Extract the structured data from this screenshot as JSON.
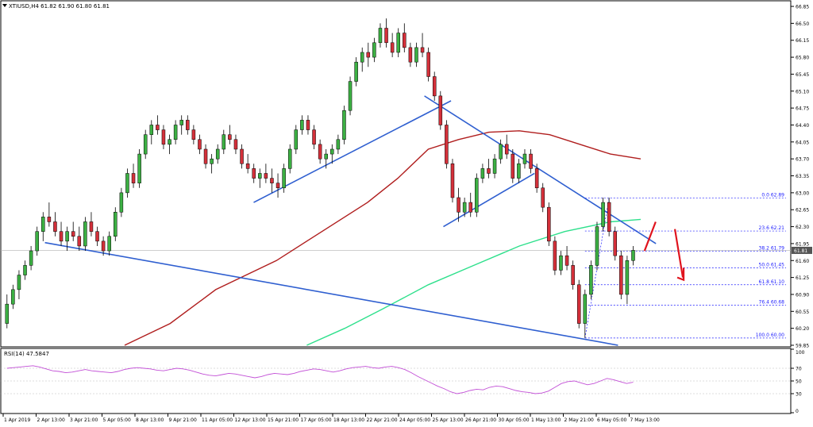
{
  "header": {
    "symbol_line": "XTIUSD,H4  61.82 61.90 61.80 61.81",
    "rsi_label": "RSI(14) 47.5847"
  },
  "colors": {
    "candle_up": "#3cb043",
    "candle_down": "#d4303a",
    "trendline": "#2f5fd0",
    "ma_slow": "#b01e1e",
    "ma_fast": "#2ee08c",
    "fib": "#1a1aff",
    "rsi": "#c24fd6",
    "arrow": "#e0141e"
  },
  "chart_data": {
    "type": "candlestick",
    "ylim": [
      59.85,
      66.9
    ],
    "price_ticks": [
      "66.85",
      "66.50",
      "66.15",
      "65.80",
      "65.45",
      "65.10",
      "64.75",
      "64.40",
      "64.05",
      "63.70",
      "63.35",
      "63.00",
      "62.65",
      "62.30",
      "61.95",
      "61.60",
      "61.25",
      "60.90",
      "60.55",
      "60.20",
      "59.85"
    ],
    "current_price": "61.81",
    "x_labels": [
      "1 Apr 2019",
      "2 Apr 13:00",
      "3 Apr 21:00",
      "5 Apr 05:00",
      "8 Apr 13:00",
      "9 Apr 21:00",
      "11 Apr 05:00",
      "12 Apr 13:00",
      "15 Apr 21:00",
      "17 Apr 05:00",
      "18 Apr 13:00",
      "22 Apr 21:00",
      "24 Apr 05:00",
      "25 Apr 13:00",
      "26 Apr 21:00",
      "30 Apr 05:00",
      "1 May 13:00",
      "2 May 21:00",
      "6 May 05:00",
      "7 May 13:00"
    ],
    "fib_levels": [
      {
        "label": "0.0 62.89",
        "price": 62.89
      },
      {
        "label": "23.6 62.21",
        "price": 62.21
      },
      {
        "label": "38.2 61.79",
        "price": 61.79
      },
      {
        "label": "50.0 61.45",
        "price": 61.45
      },
      {
        "label": "61.8 61.10",
        "price": 61.1
      },
      {
        "label": "76.4 60.68",
        "price": 60.68
      },
      {
        "label": "100.0 60.00",
        "price": 60.0
      }
    ],
    "candles": [
      [
        60.3,
        60.9,
        60.2,
        60.7
      ],
      [
        60.7,
        61.1,
        60.6,
        61.0
      ],
      [
        61.0,
        61.4,
        60.8,
        61.3
      ],
      [
        61.3,
        61.6,
        61.2,
        61.5
      ],
      [
        61.5,
        61.9,
        61.4,
        61.8
      ],
      [
        61.8,
        62.3,
        61.7,
        62.2
      ],
      [
        62.2,
        62.6,
        62.0,
        62.5
      ],
      [
        62.5,
        62.8,
        62.3,
        62.4
      ],
      [
        62.4,
        62.6,
        62.1,
        62.2
      ],
      [
        62.2,
        62.4,
        61.9,
        62.0
      ],
      [
        62.0,
        62.3,
        61.8,
        62.2
      ],
      [
        62.2,
        62.4,
        62.0,
        62.1
      ],
      [
        62.1,
        62.3,
        61.8,
        61.9
      ],
      [
        61.9,
        62.5,
        61.8,
        62.4
      ],
      [
        62.4,
        62.6,
        62.1,
        62.2
      ],
      [
        62.2,
        62.3,
        61.9,
        62.0
      ],
      [
        62.0,
        62.1,
        61.7,
        61.8
      ],
      [
        61.8,
        62.2,
        61.7,
        62.1
      ],
      [
        62.1,
        62.7,
        62.0,
        62.6
      ],
      [
        62.6,
        63.1,
        62.5,
        63.0
      ],
      [
        63.0,
        63.5,
        62.9,
        63.4
      ],
      [
        63.4,
        63.6,
        63.1,
        63.2
      ],
      [
        63.2,
        63.9,
        63.1,
        63.8
      ],
      [
        63.8,
        64.3,
        63.7,
        64.2
      ],
      [
        64.2,
        64.5,
        64.0,
        64.4
      ],
      [
        64.4,
        64.6,
        64.2,
        64.3
      ],
      [
        64.3,
        64.4,
        63.9,
        64.0
      ],
      [
        64.0,
        64.2,
        63.8,
        64.1
      ],
      [
        64.1,
        64.5,
        64.0,
        64.4
      ],
      [
        64.4,
        64.6,
        64.2,
        64.5
      ],
      [
        64.5,
        64.6,
        64.2,
        64.3
      ],
      [
        64.3,
        64.4,
        64.0,
        64.1
      ],
      [
        64.1,
        64.2,
        63.8,
        63.9
      ],
      [
        63.9,
        64.0,
        63.5,
        63.6
      ],
      [
        63.6,
        63.8,
        63.4,
        63.7
      ],
      [
        63.7,
        64.0,
        63.6,
        63.9
      ],
      [
        63.9,
        64.3,
        63.8,
        64.2
      ],
      [
        64.2,
        64.4,
        64.0,
        64.1
      ],
      [
        64.1,
        64.2,
        63.8,
        63.9
      ],
      [
        63.9,
        64.0,
        63.5,
        63.6
      ],
      [
        63.6,
        63.8,
        63.4,
        63.5
      ],
      [
        63.5,
        63.6,
        63.2,
        63.3
      ],
      [
        63.3,
        63.5,
        63.1,
        63.4
      ],
      [
        63.4,
        63.6,
        63.2,
        63.3
      ],
      [
        63.3,
        63.5,
        63.0,
        63.2
      ],
      [
        63.2,
        63.4,
        62.9,
        63.1
      ],
      [
        63.1,
        63.6,
        63.0,
        63.5
      ],
      [
        63.5,
        64.0,
        63.4,
        63.9
      ],
      [
        63.9,
        64.4,
        63.8,
        64.3
      ],
      [
        64.3,
        64.6,
        64.2,
        64.5
      ],
      [
        64.5,
        64.6,
        64.2,
        64.3
      ],
      [
        64.3,
        64.4,
        63.9,
        64.0
      ],
      [
        64.0,
        64.1,
        63.6,
        63.7
      ],
      [
        63.7,
        63.9,
        63.5,
        63.8
      ],
      [
        63.8,
        64.0,
        63.6,
        63.9
      ],
      [
        63.9,
        64.2,
        63.8,
        64.1
      ],
      [
        64.1,
        64.8,
        64.0,
        64.7
      ],
      [
        64.7,
        65.4,
        64.6,
        65.3
      ],
      [
        65.3,
        65.8,
        65.2,
        65.7
      ],
      [
        65.7,
        66.0,
        65.5,
        65.9
      ],
      [
        65.9,
        66.1,
        65.6,
        65.8
      ],
      [
        65.8,
        66.2,
        65.7,
        66.1
      ],
      [
        66.1,
        66.5,
        66.0,
        66.4
      ],
      [
        66.4,
        66.6,
        66.0,
        66.1
      ],
      [
        66.1,
        66.3,
        65.8,
        65.9
      ],
      [
        65.9,
        66.4,
        65.8,
        66.3
      ],
      [
        66.3,
        66.5,
        65.9,
        66.0
      ],
      [
        66.0,
        66.1,
        65.6,
        65.7
      ],
      [
        65.7,
        66.1,
        65.6,
        66.0
      ],
      [
        66.0,
        66.3,
        65.8,
        65.9
      ],
      [
        65.9,
        66.0,
        65.3,
        65.4
      ],
      [
        65.4,
        65.5,
        64.9,
        65.0
      ],
      [
        65.0,
        65.1,
        64.3,
        64.4
      ],
      [
        64.4,
        64.5,
        63.5,
        63.6
      ],
      [
        63.6,
        63.7,
        62.8,
        62.9
      ],
      [
        62.9,
        63.1,
        62.4,
        62.6
      ],
      [
        62.6,
        62.9,
        62.5,
        62.8
      ],
      [
        62.8,
        63.0,
        62.5,
        62.6
      ],
      [
        62.6,
        63.4,
        62.5,
        63.3
      ],
      [
        63.3,
        63.6,
        63.2,
        63.5
      ],
      [
        63.5,
        63.7,
        63.3,
        63.4
      ],
      [
        63.4,
        63.8,
        63.3,
        63.7
      ],
      [
        63.7,
        64.1,
        63.6,
        64.0
      ],
      [
        64.0,
        64.2,
        63.7,
        63.8
      ],
      [
        63.8,
        63.9,
        63.2,
        63.3
      ],
      [
        63.3,
        63.7,
        63.2,
        63.6
      ],
      [
        63.6,
        63.9,
        63.5,
        63.8
      ],
      [
        63.8,
        63.9,
        63.4,
        63.5
      ],
      [
        63.5,
        63.6,
        63.0,
        63.1
      ],
      [
        63.1,
        63.2,
        62.6,
        62.7
      ],
      [
        62.7,
        62.8,
        61.9,
        62.0
      ],
      [
        62.0,
        62.1,
        61.3,
        61.4
      ],
      [
        61.4,
        61.8,
        61.3,
        61.7
      ],
      [
        61.7,
        61.9,
        61.4,
        61.5
      ],
      [
        61.5,
        61.6,
        61.0,
        61.1
      ],
      [
        61.1,
        61.2,
        60.2,
        60.3
      ],
      [
        60.3,
        61.0,
        60.0,
        60.9
      ],
      [
        60.9,
        61.6,
        60.8,
        61.5
      ],
      [
        61.5,
        62.4,
        61.4,
        62.3
      ],
      [
        62.3,
        62.9,
        62.2,
        62.8
      ],
      [
        62.8,
        62.9,
        62.1,
        62.2
      ],
      [
        62.2,
        62.3,
        61.6,
        61.7
      ],
      [
        61.7,
        61.8,
        60.8,
        60.9
      ],
      [
        60.9,
        61.7,
        60.7,
        61.6
      ],
      [
        61.6,
        61.9,
        61.5,
        61.81
      ]
    ],
    "ma_slow_points": [
      [
        0.16,
        59.85
      ],
      [
        0.22,
        60.3
      ],
      [
        0.28,
        61.0
      ],
      [
        0.36,
        61.6
      ],
      [
        0.42,
        62.2
      ],
      [
        0.48,
        62.8
      ],
      [
        0.52,
        63.3
      ],
      [
        0.56,
        63.9
      ],
      [
        0.6,
        64.1
      ],
      [
        0.64,
        64.25
      ],
      [
        0.68,
        64.28
      ],
      [
        0.72,
        64.2
      ],
      [
        0.76,
        64.0
      ],
      [
        0.8,
        63.8
      ],
      [
        0.84,
        63.7
      ]
    ],
    "ma_fast_points": [
      [
        0.4,
        59.85
      ],
      [
        0.45,
        60.2
      ],
      [
        0.5,
        60.6
      ],
      [
        0.56,
        61.1
      ],
      [
        0.62,
        61.5
      ],
      [
        0.68,
        61.9
      ],
      [
        0.74,
        62.2
      ],
      [
        0.8,
        62.4
      ],
      [
        0.84,
        62.45
      ]
    ],
    "trendlines": [
      [
        [
          0.055,
          61.97
        ],
        [
          0.81,
          59.85
        ]
      ],
      [
        [
          0.33,
          62.8
        ],
        [
          0.59,
          64.9
        ]
      ],
      [
        [
          0.555,
          65.0
        ],
        [
          0.86,
          61.95
        ]
      ],
      [
        [
          0.58,
          62.3
        ],
        [
          0.7,
          63.4
        ]
      ]
    ],
    "rsi": {
      "ticks": [
        100,
        70,
        50,
        30,
        0
      ],
      "values": [
        70,
        71,
        72,
        73,
        74,
        72,
        69,
        66,
        65,
        63,
        64,
        66,
        68,
        66,
        65,
        64,
        63,
        65,
        68,
        70,
        71,
        70,
        69,
        67,
        66,
        68,
        70,
        69,
        67,
        64,
        61,
        59,
        58,
        60,
        62,
        61,
        59,
        57,
        55,
        57,
        60,
        62,
        61,
        60,
        62,
        65,
        67,
        69,
        68,
        66,
        64,
        66,
        69,
        71,
        72,
        73,
        71,
        70,
        72,
        73,
        71,
        68,
        63,
        57,
        52,
        47,
        42,
        38,
        33,
        30,
        32,
        35,
        37,
        36,
        40,
        42,
        41,
        38,
        35,
        33,
        32,
        30,
        31,
        34,
        40,
        46,
        49,
        50,
        47,
        44,
        46,
        50,
        54,
        52,
        49,
        46,
        48
      ]
    }
  }
}
